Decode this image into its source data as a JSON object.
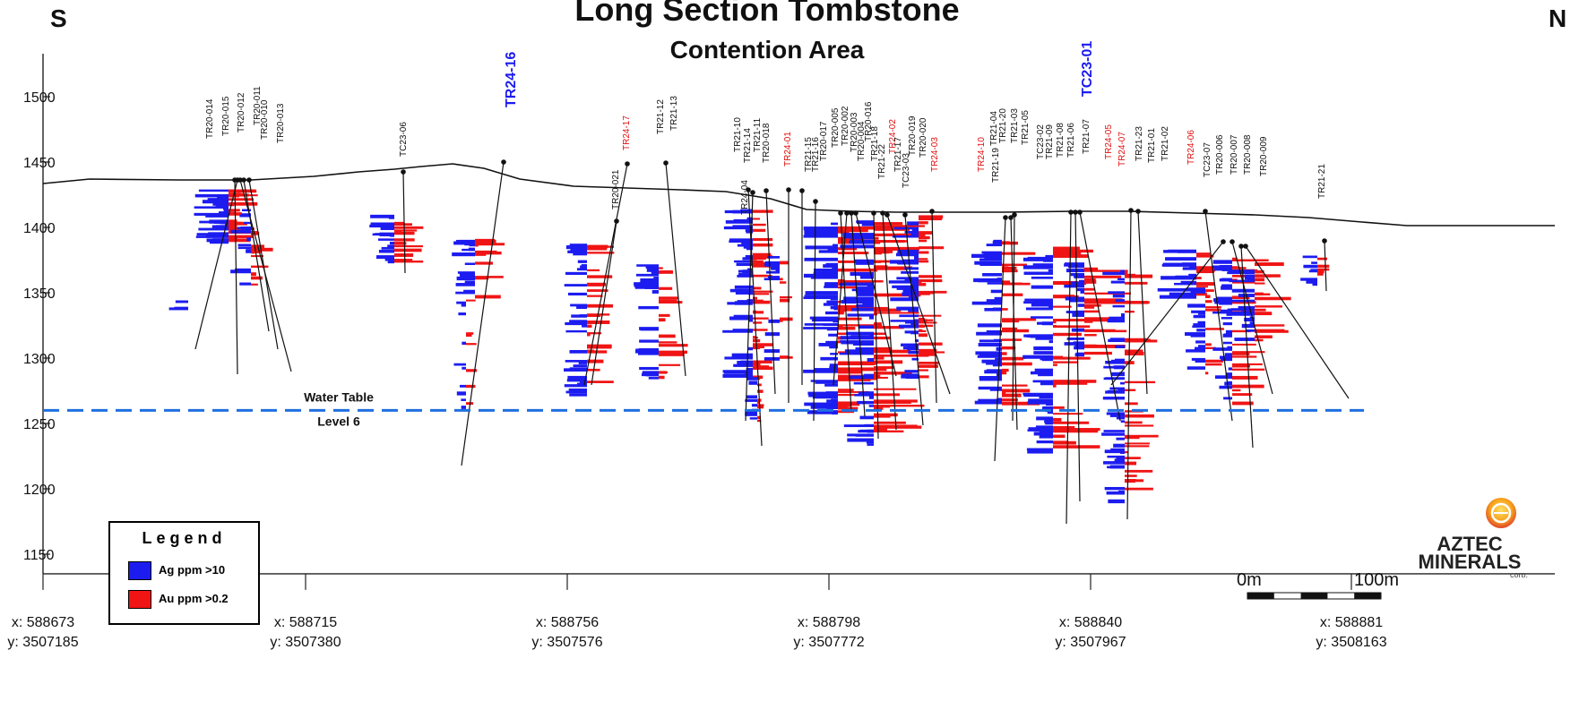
{
  "title": "Long Section Tombstone",
  "subtitle": "Contention Area",
  "compass": {
    "left": "S",
    "right": "N"
  },
  "elevation_axis": {
    "ticks": [
      1500,
      1450,
      1400,
      1350,
      1300,
      1250,
      1200,
      1150
    ],
    "min": 1135,
    "max": 1535
  },
  "coordinate_ticks": [
    {
      "x": "x: 588673",
      "y": "y: 3507185"
    },
    {
      "x": "x: 588715",
      "y": "y: 3507380"
    },
    {
      "x": "x: 588756",
      "y": "y: 3507576"
    },
    {
      "x": "x: 588798",
      "y": "y: 3507772"
    },
    {
      "x": "x: 588840",
      "y": "y: 3507967"
    },
    {
      "x": "x: 588881",
      "y": "y: 3508163"
    }
  ],
  "water_table": {
    "label_line1": "Water Table",
    "label_line2": "Level 6",
    "elevation": 1260,
    "color": "#1e6fe0"
  },
  "legend": {
    "title": "Legend",
    "items": [
      {
        "label": "Ag ppm >10",
        "color": "#1c1cf0"
      },
      {
        "label": "Au ppm >0.2",
        "color": "#f01414"
      }
    ]
  },
  "scale_bar": {
    "start_label": "0m",
    "end_label": "100m"
  },
  "logo": {
    "line1": "AZTEC",
    "line2": "MINERALS",
    "line3": "corp."
  },
  "colors": {
    "ag": "#1c1cf0",
    "au": "#f01414",
    "new_hole_blue": "#1c1cf0",
    "new_hole_red": "#e01010",
    "trace": "#111111"
  },
  "drill_holes": [
    {
      "name": "TR20-014",
      "color": "black"
    },
    {
      "name": "TR20-015",
      "color": "black"
    },
    {
      "name": "TR20-012",
      "color": "black"
    },
    {
      "name": "TR20-011",
      "color": "black"
    },
    {
      "name": "TR20-010",
      "color": "black"
    },
    {
      "name": "TR20-013",
      "color": "black"
    },
    {
      "name": "TC23-06",
      "color": "black"
    },
    {
      "name": "TR24-16",
      "color": "blue"
    },
    {
      "name": "TR20-021",
      "color": "black"
    },
    {
      "name": "TR24-17",
      "color": "red"
    },
    {
      "name": "TR21-12",
      "color": "black"
    },
    {
      "name": "TR21-13",
      "color": "black"
    },
    {
      "name": "TR21-10",
      "color": "black"
    },
    {
      "name": "TR21-14",
      "color": "black"
    },
    {
      "name": "TR21-11",
      "color": "black"
    },
    {
      "name": "TR20-018",
      "color": "black"
    },
    {
      "name": "TR24-04",
      "color": "black"
    },
    {
      "name": "TR24-01",
      "color": "red"
    },
    {
      "name": "TR21-15",
      "color": "black"
    },
    {
      "name": "TR21-16",
      "color": "black"
    },
    {
      "name": "TR20-017",
      "color": "black"
    },
    {
      "name": "TR20-005",
      "color": "black"
    },
    {
      "name": "TR20-002",
      "color": "black"
    },
    {
      "name": "TR20-003",
      "color": "black"
    },
    {
      "name": "TR20-004",
      "color": "black"
    },
    {
      "name": "TR20-016",
      "color": "black"
    },
    {
      "name": "TR21-18",
      "color": "black"
    },
    {
      "name": "TR21-22",
      "color": "black"
    },
    {
      "name": "TR24-02",
      "color": "red"
    },
    {
      "name": "TR21-17",
      "color": "black"
    },
    {
      "name": "TC23-03",
      "color": "black"
    },
    {
      "name": "TR20-019",
      "color": "black"
    },
    {
      "name": "TR20-020",
      "color": "black"
    },
    {
      "name": "TR24-03",
      "color": "red"
    },
    {
      "name": "TR24-10",
      "color": "red"
    },
    {
      "name": "TR21-19",
      "color": "black"
    },
    {
      "name": "TR21-04",
      "color": "black"
    },
    {
      "name": "TR21-20",
      "color": "black"
    },
    {
      "name": "TR21-03",
      "color": "black"
    },
    {
      "name": "TR21-05",
      "color": "black"
    },
    {
      "name": "TC23-02",
      "color": "black"
    },
    {
      "name": "TR21-09",
      "color": "black"
    },
    {
      "name": "TR21-08",
      "color": "black"
    },
    {
      "name": "TR21-06",
      "color": "black"
    },
    {
      "name": "TC23-01",
      "color": "blue"
    },
    {
      "name": "TR21-07",
      "color": "black"
    },
    {
      "name": "TR24-05",
      "color": "red"
    },
    {
      "name": "TR24-07",
      "color": "red"
    },
    {
      "name": "TR21-23",
      "color": "black"
    },
    {
      "name": "TR21-01",
      "color": "black"
    },
    {
      "name": "TR21-02",
      "color": "black"
    },
    {
      "name": "TR24-06",
      "color": "red"
    },
    {
      "name": "TC23-07",
      "color": "black"
    },
    {
      "name": "TR20-006",
      "color": "black"
    },
    {
      "name": "TR20-007",
      "color": "black"
    },
    {
      "name": "TR20-008",
      "color": "black"
    },
    {
      "name": "TR20-009",
      "color": "black"
    },
    {
      "name": "TR21-21",
      "color": "black"
    }
  ]
}
